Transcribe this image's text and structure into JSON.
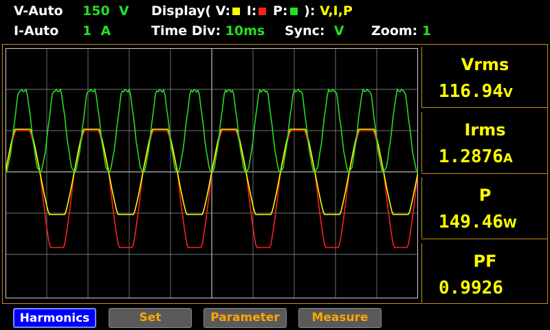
{
  "header": {
    "v_range_label": "V-Auto",
    "v_range_value": "150",
    "v_range_unit": "V",
    "i_range_label": "I-Auto",
    "i_range_value": "1",
    "i_range_unit": "A",
    "display_label": "Display( V:",
    "display_i_label": "I:",
    "display_p_label": "P:",
    "display_close": "):",
    "display_value": "V,I,P",
    "timediv_label": "Time  Div:",
    "timediv_value": "10ms",
    "sync_label": "Sync:",
    "sync_value": "V",
    "zoom_label": "Zoom:",
    "zoom_value": "1"
  },
  "colors": {
    "voltage": "#ffff00",
    "current": "#ff2020",
    "power": "#22e022",
    "grid": "#9a9a9a",
    "accent": "#c8901a"
  },
  "readouts": [
    {
      "label": "Vrms",
      "value": "116.94",
      "unit": "V"
    },
    {
      "label": "Irms",
      "value": "1.2876",
      "unit": "A"
    },
    {
      "label": "P",
      "value": "149.46",
      "unit": "W"
    },
    {
      "label": "PF",
      "value": "0.9926",
      "unit": ""
    }
  ],
  "buttons": [
    {
      "label": "Harmonics",
      "active": true
    },
    {
      "label": "Set",
      "active": false
    },
    {
      "label": "Parameter",
      "active": false
    },
    {
      "label": "Measure",
      "active": false
    }
  ]
}
